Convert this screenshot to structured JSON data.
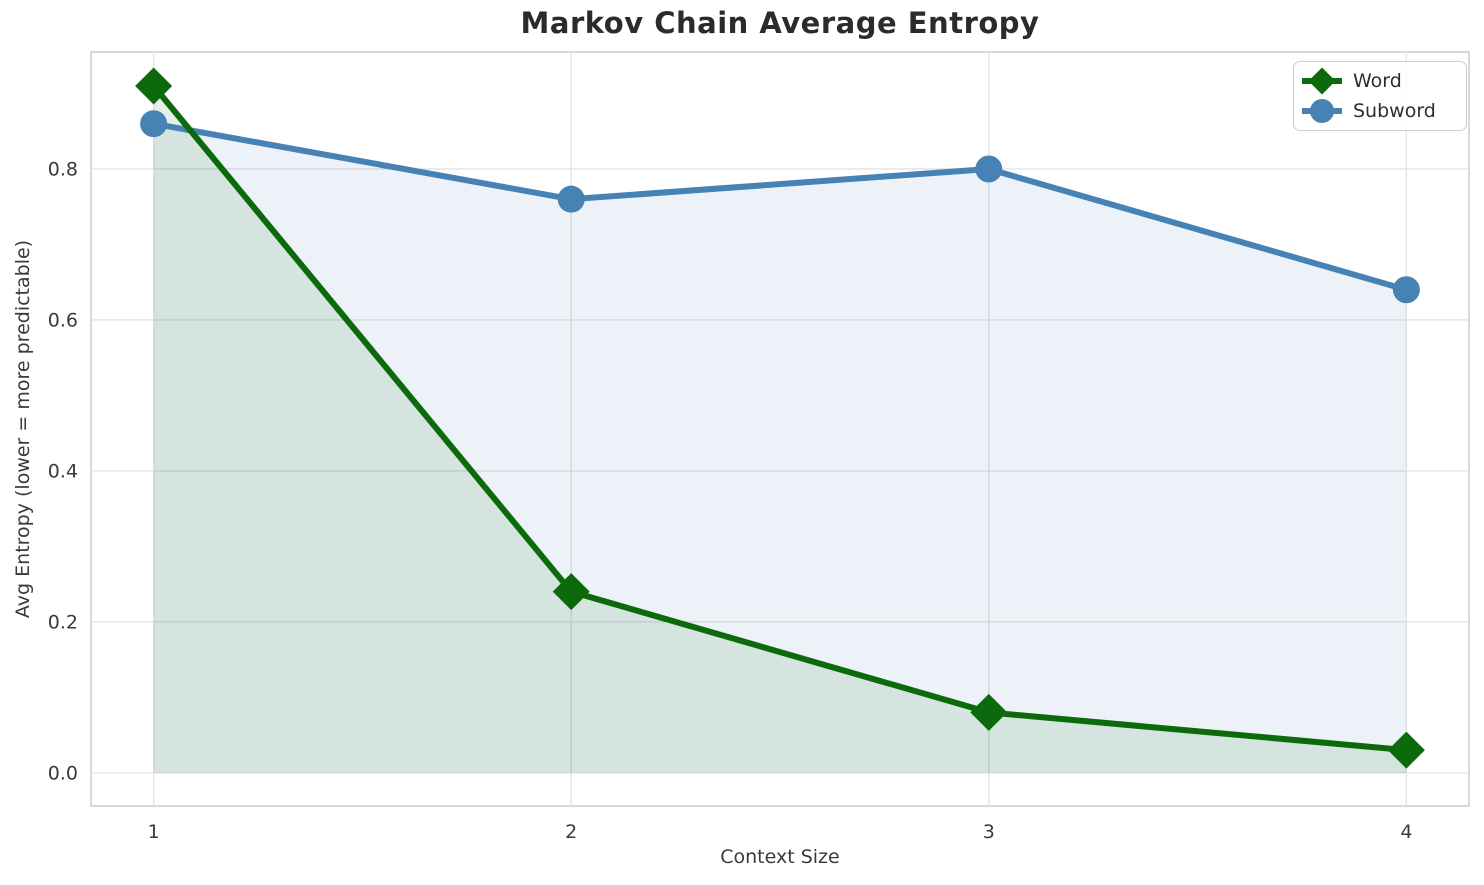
{
  "figure": {
    "background": "#ffffff",
    "plot_background": "#ffffff",
    "grid_color": "#e4e4e4",
    "spine_color": "#cccccc",
    "title_color": "#2b2b2b",
    "tick_text_color": "#3a3a3a"
  },
  "chart_data": {
    "type": "line",
    "title": "Markov Chain Average Entropy",
    "xlabel": "Context Size",
    "ylabel": "Avg Entropy (lower = more predictable)",
    "x": [
      1,
      2,
      3,
      4
    ],
    "xtick_labels": [
      "1",
      "2",
      "3",
      "4"
    ],
    "yticks": [
      0.0,
      0.2,
      0.4,
      0.6,
      0.8
    ],
    "ytick_labels": [
      "0.0",
      "0.2",
      "0.4",
      "0.6",
      "0.8"
    ],
    "xlim": [
      0.85,
      4.15
    ],
    "ylim": [
      -0.044,
      0.955
    ],
    "grid": true,
    "legend_position": "upper right",
    "fill_to_zero": true,
    "fill_alpha": 0.1,
    "series": [
      {
        "name": "Word",
        "color": "#0c6a0c",
        "marker": "diamond",
        "values": [
          0.91,
          0.24,
          0.08,
          0.03
        ]
      },
      {
        "name": "Subword",
        "color": "#4682b4",
        "marker": "circle",
        "values": [
          0.86,
          0.76,
          0.8,
          0.64
        ]
      }
    ]
  }
}
